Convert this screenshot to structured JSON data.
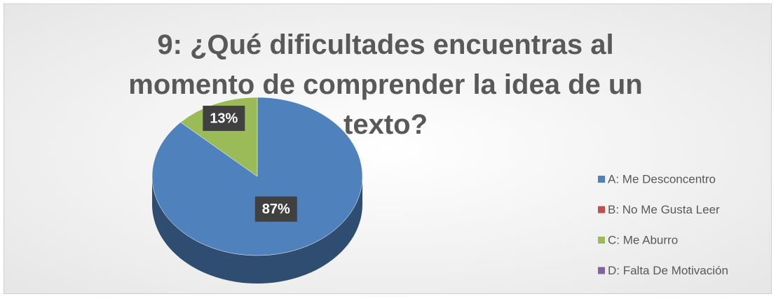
{
  "chart_data": {
    "type": "pie",
    "title": "9: ¿Qué dificultades encuentras al momento de comprender la idea de un texto?",
    "categories": [
      "A: Me Desconcentro",
      "B: No Me Gusta Leer",
      "C: Me Aburro",
      "D: Falta De Motivación"
    ],
    "values": [
      87,
      0,
      13,
      0
    ],
    "value_labels": [
      "87%",
      null,
      "13%",
      null
    ],
    "colors": [
      "#4f81bd",
      "#c0504d",
      "#9bbb59",
      "#8064a2"
    ],
    "legend": "right"
  }
}
